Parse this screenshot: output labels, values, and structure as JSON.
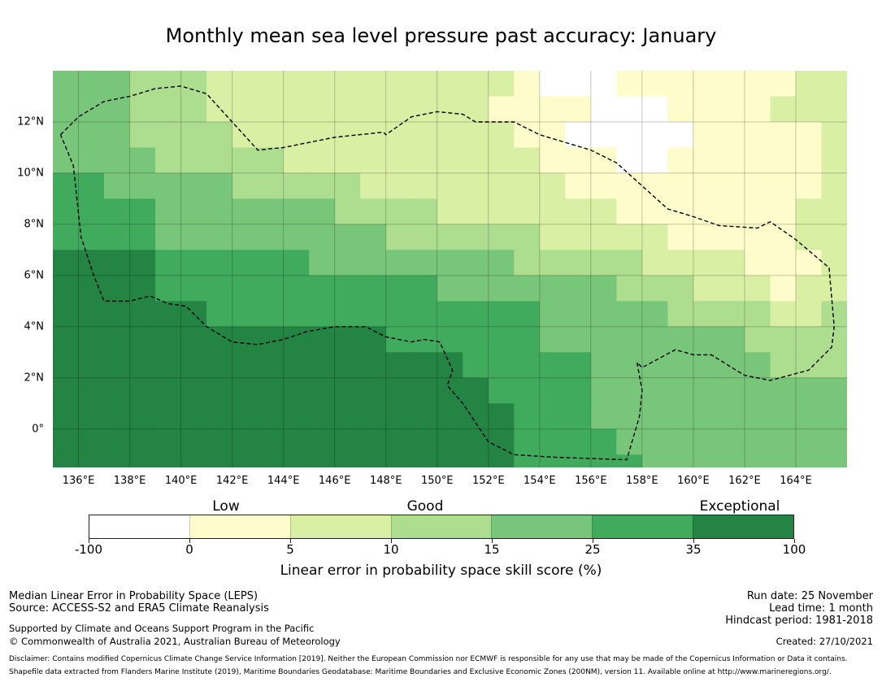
{
  "title": "Monthly mean sea level pressure past accuracy: January",
  "chart_data": {
    "type": "heatmap",
    "title": "Monthly mean sea level pressure past accuracy: January",
    "x_ticks": [
      "136°E",
      "138°E",
      "140°E",
      "142°E",
      "144°E",
      "146°E",
      "148°E",
      "150°E",
      "152°E",
      "154°E",
      "156°E",
      "158°E",
      "160°E",
      "162°E",
      "164°E"
    ],
    "x_tick_values": [
      136,
      138,
      140,
      142,
      144,
      146,
      148,
      150,
      152,
      154,
      156,
      158,
      160,
      162,
      164
    ],
    "y_ticks": [
      "12°N",
      "10°N",
      "8°N",
      "6°N",
      "4°N",
      "2°N",
      "0°"
    ],
    "y_tick_values": [
      12,
      10,
      8,
      6,
      4,
      2,
      0
    ],
    "lon_range": [
      135,
      166
    ],
    "lat_range": [
      -1.5,
      14
    ],
    "grid": true,
    "colorbar": {
      "title": "Linear error in probability space skill score (%)",
      "bounds": [
        "-100",
        "0",
        "5",
        "10",
        "15",
        "25",
        "35",
        "100"
      ],
      "colors": [
        "#ffffff",
        "#fefccb",
        "#d9efa3",
        "#addd8e",
        "#78c679",
        "#41ab5d",
        "#238443"
      ],
      "category_labels": [
        {
          "label": "Low",
          "at_bin": 1
        },
        {
          "label": "Good",
          "at_bin": 3
        },
        {
          "label": "Exceptional",
          "at_bin": 6
        }
      ]
    },
    "grid_resolution_deg": 1,
    "grid_lon_start": 135,
    "grid_lat_top": 14,
    "category_grid": [
      "44433322222222222210001111111221",
      "44433322222222222111100011112221",
      "44433332222222222211000001111122",
      "44443333322222222221110011111122",
      "55444443333322222222111111111122",
      "55554444444333322222221111111222",
      "55554444444443333332222211111222",
      "66665555554444444433333222211122",
      "66665555555555544444443332221223",
      "66666655555555555554444433332233",
      "66666666666665555554444444433333",
      "66666666666666665555544444443333",
      "66666666666666666555544444444443",
      "66666666666666666655544444444444",
      "66666666666666666655554444444444",
      "66666666666666666655555444444444"
    ]
  },
  "footer": {
    "left_line1": "Median Linear Error in Probability Space (LEPS)",
    "left_line2": "Source: ACCESS-S2 and ERA5 Climate Reanalysis",
    "left_line3": "Supported by Climate and Oceans Support Program in the Pacific",
    "left_line4": "© Commonwealth of Australia 2021, Australian Bureau of Meteorology",
    "right_line1": "Run date: 25 November",
    "right_line2": "Lead time: 1 month",
    "right_line3": "Hindcast period: 1981-2018",
    "created": "Created: 27/10/2021",
    "disclaimer1": "Disclaimer: Contains modified Copernicus Climate Change Service Information [2019]. Neither the European Commission nor ECMWF is responsible for any use that may be made of the Copernicus Information or Data it contains.",
    "disclaimer2": "Shapefile data extracted from Flanders Marine Institute (2019), Maritime Boundaries Geodatabase: Maritime Boundaries and Exclusive Economic Zones (200NM), version 11. Available online at http://www.marineregions.org/."
  },
  "eez_boundary": {
    "style": "dashed",
    "color": "#000000",
    "points_lonlat": [
      [
        135.3,
        11.5
      ],
      [
        136.0,
        12.2
      ],
      [
        137.0,
        12.8
      ],
      [
        138.0,
        13.0
      ],
      [
        139.0,
        13.3
      ],
      [
        140.0,
        13.4
      ],
      [
        141.0,
        13.1
      ],
      [
        142.0,
        12.0
      ],
      [
        143.0,
        10.9
      ],
      [
        144.0,
        11.0
      ],
      [
        146.0,
        11.4
      ],
      [
        147.9,
        11.6
      ],
      [
        148.0,
        11.5
      ],
      [
        149.0,
        12.2
      ],
      [
        150.0,
        12.4
      ],
      [
        151.0,
        12.3
      ],
      [
        151.5,
        12.0
      ],
      [
        153.0,
        12.0
      ],
      [
        154.0,
        11.5
      ],
      [
        155.0,
        11.2
      ],
      [
        156.0,
        10.9
      ],
      [
        157.0,
        10.4
      ],
      [
        158.0,
        9.5
      ],
      [
        159.0,
        8.6
      ],
      [
        160.0,
        8.3
      ],
      [
        161.0,
        7.95
      ],
      [
        162.5,
        7.85
      ],
      [
        163.0,
        8.1
      ],
      [
        164.0,
        7.4
      ],
      [
        165.3,
        6.3
      ],
      [
        165.5,
        4.0
      ],
      [
        165.4,
        3.2
      ],
      [
        164.5,
        2.3
      ],
      [
        163.0,
        1.9
      ],
      [
        162.0,
        2.1
      ],
      [
        160.7,
        2.9
      ],
      [
        160.0,
        2.9
      ],
      [
        159.3,
        3.1
      ],
      [
        158.0,
        2.4
      ],
      [
        157.8,
        2.6
      ],
      [
        158.0,
        1.5
      ],
      [
        157.9,
        0.5
      ],
      [
        157.4,
        -1.2
      ],
      [
        154.5,
        -1.1
      ],
      [
        153.0,
        -1.0
      ],
      [
        152.0,
        -0.5
      ],
      [
        151.0,
        1.0
      ],
      [
        150.4,
        1.7
      ],
      [
        150.6,
        2.3
      ],
      [
        150.1,
        3.4
      ],
      [
        149.5,
        3.5
      ],
      [
        149.0,
        3.4
      ],
      [
        148.0,
        3.6
      ],
      [
        147.2,
        4.0
      ],
      [
        146.0,
        4.0
      ],
      [
        144.9,
        3.8
      ],
      [
        144.0,
        3.5
      ],
      [
        143.0,
        3.3
      ],
      [
        142.0,
        3.4
      ],
      [
        141.0,
        4.0
      ],
      [
        140.2,
        4.8
      ],
      [
        139.5,
        4.9
      ],
      [
        138.8,
        5.2
      ],
      [
        138.0,
        5.0
      ],
      [
        137.0,
        5.0
      ],
      [
        136.6,
        6.0
      ],
      [
        136.1,
        7.5
      ],
      [
        135.8,
        10.3
      ],
      [
        135.3,
        11.5
      ]
    ]
  }
}
